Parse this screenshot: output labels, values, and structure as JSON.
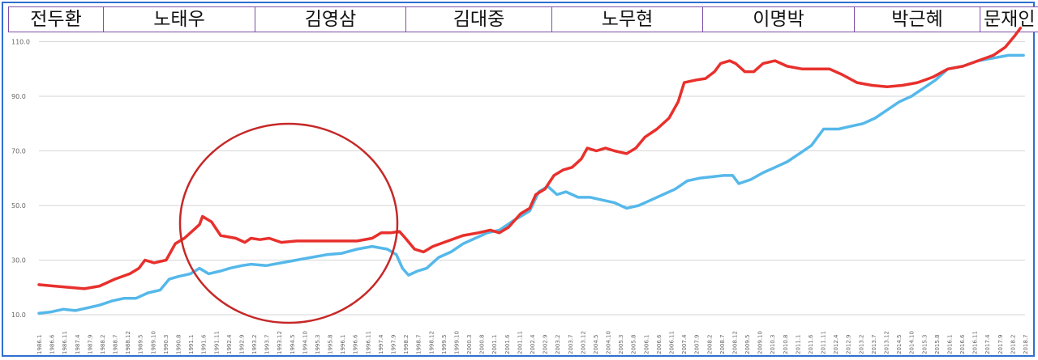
{
  "eras": [
    "전두환",
    "노태우",
    "김영삼",
    "김대중",
    "노무현",
    "이명박",
    "박근혜",
    "문재인"
  ],
  "colors": {
    "red_series": "#e8302c",
    "blue_series": "#55b8ea",
    "circle": "#c62828",
    "border": "#2e6fd0",
    "era_border": "#7c4fa8"
  },
  "chart_data": {
    "type": "line",
    "title": "",
    "xlabel": "",
    "ylabel": "",
    "ylim": [
      10,
      115
    ],
    "yticks": [
      "10.0",
      "30.0",
      "50.0",
      "70.0",
      "90.0",
      "110.0"
    ],
    "grid": true,
    "x_tick_labels": [
      "1986.1",
      "1986.6",
      "1986.11",
      "1987.4",
      "1987.9",
      "1988.2",
      "1988.7",
      "1988.12",
      "1989.5",
      "1989.10",
      "1990.3",
      "1990.8",
      "1991.1",
      "1991.6",
      "1991.11",
      "1992.4",
      "1992.9",
      "1993.2",
      "1993.7",
      "1993.12",
      "1994.5",
      "1994.10",
      "1995.3",
      "1995.8",
      "1996.1",
      "1996.6",
      "1996.11",
      "1997.4",
      "1997.9",
      "1998.2",
      "1998.7",
      "1998.12",
      "1999.5",
      "1999.10",
      "2000.3",
      "2000.8",
      "2001.1",
      "2001.6",
      "2001.11",
      "2002.4",
      "2002.9",
      "2003.2",
      "2003.7",
      "2003.12",
      "2004.5",
      "2004.10",
      "2005.3",
      "2005.8",
      "2006.1",
      "2006.6",
      "2006.11",
      "2007.4",
      "2007.9",
      "2008.2",
      "2008.7",
      "2008.12",
      "2009.5",
      "2009.10",
      "2010.3",
      "2010.8",
      "2011.1",
      "2011.6",
      "2011.11",
      "2012.4",
      "2012.9",
      "2013.2",
      "2013.7",
      "2013.12",
      "2014.5",
      "2014.10",
      "2015.3",
      "2015.8",
      "2016.1",
      "2016.6",
      "2016.11",
      "2017.4",
      "2017.9",
      "2018.2",
      "2018.7"
    ],
    "x_range": [
      1986.0,
      2018.55
    ],
    "series": [
      {
        "points": [
          [
            1986.0,
            21
          ],
          [
            1986.5,
            20.5
          ],
          [
            1987.0,
            20
          ],
          [
            1987.5,
            19.5
          ],
          [
            1988.0,
            20.5
          ],
          [
            1988.5,
            23
          ],
          [
            1989.0,
            25
          ],
          [
            1989.3,
            27
          ],
          [
            1989.5,
            30
          ],
          [
            1989.8,
            29
          ],
          [
            1990.2,
            30
          ],
          [
            1990.5,
            36
          ],
          [
            1990.8,
            38
          ],
          [
            1991.1,
            41
          ],
          [
            1991.3,
            43
          ],
          [
            1991.4,
            46
          ],
          [
            1991.7,
            44
          ],
          [
            1992.0,
            39
          ],
          [
            1992.5,
            38
          ],
          [
            1992.8,
            36.5
          ],
          [
            1993.0,
            38
          ],
          [
            1993.3,
            37.5
          ],
          [
            1993.6,
            38
          ],
          [
            1994.0,
            36.5
          ],
          [
            1994.5,
            37
          ],
          [
            1995.0,
            37
          ],
          [
            1995.5,
            37
          ],
          [
            1996.0,
            37
          ],
          [
            1996.5,
            37
          ],
          [
            1997.0,
            38
          ],
          [
            1997.3,
            40
          ],
          [
            1997.6,
            40
          ],
          [
            1997.9,
            40.5
          ],
          [
            1998.1,
            38
          ],
          [
            1998.4,
            34
          ],
          [
            1998.7,
            33
          ],
          [
            1999.0,
            35
          ],
          [
            1999.5,
            37
          ],
          [
            2000.0,
            39
          ],
          [
            2000.5,
            40
          ],
          [
            2000.9,
            41
          ],
          [
            2001.2,
            40
          ],
          [
            2001.5,
            42
          ],
          [
            2001.9,
            47
          ],
          [
            2002.2,
            49
          ],
          [
            2002.4,
            54
          ],
          [
            2002.7,
            56
          ],
          [
            2003.0,
            61
          ],
          [
            2003.3,
            63
          ],
          [
            2003.6,
            64
          ],
          [
            2003.9,
            67
          ],
          [
            2004.1,
            71
          ],
          [
            2004.4,
            70
          ],
          [
            2004.7,
            71
          ],
          [
            2005.0,
            70
          ],
          [
            2005.4,
            69
          ],
          [
            2005.7,
            71
          ],
          [
            2006.0,
            75
          ],
          [
            2006.4,
            78
          ],
          [
            2006.8,
            82
          ],
          [
            2007.1,
            88
          ],
          [
            2007.3,
            95
          ],
          [
            2007.7,
            96
          ],
          [
            2008.0,
            96.5
          ],
          [
            2008.3,
            99
          ],
          [
            2008.5,
            102
          ],
          [
            2008.8,
            103
          ],
          [
            2009.0,
            102
          ],
          [
            2009.3,
            99
          ],
          [
            2009.6,
            99
          ],
          [
            2009.9,
            102
          ],
          [
            2010.3,
            103
          ],
          [
            2010.7,
            101
          ],
          [
            2011.2,
            100
          ],
          [
            2011.7,
            100
          ],
          [
            2012.1,
            100
          ],
          [
            2012.5,
            98
          ],
          [
            2013.0,
            95
          ],
          [
            2013.5,
            94
          ],
          [
            2014.0,
            93.5
          ],
          [
            2014.5,
            94
          ],
          [
            2015.0,
            95
          ],
          [
            2015.5,
            97
          ],
          [
            2016.0,
            100
          ],
          [
            2016.5,
            101
          ],
          [
            2017.0,
            103
          ],
          [
            2017.5,
            105
          ],
          [
            2017.9,
            108
          ],
          [
            2018.2,
            112
          ],
          [
            2018.4,
            115
          ]
        ]
      },
      {
        "points": [
          [
            1986.0,
            10.5
          ],
          [
            1986.4,
            11
          ],
          [
            1986.8,
            12
          ],
          [
            1987.2,
            11.5
          ],
          [
            1987.6,
            12.5
          ],
          [
            1988.0,
            13.5
          ],
          [
            1988.4,
            15
          ],
          [
            1988.8,
            16
          ],
          [
            1989.2,
            16
          ],
          [
            1989.6,
            18
          ],
          [
            1990.0,
            19
          ],
          [
            1990.3,
            23
          ],
          [
            1990.6,
            24
          ],
          [
            1991.0,
            25
          ],
          [
            1991.3,
            27
          ],
          [
            1991.6,
            25
          ],
          [
            1992.0,
            26
          ],
          [
            1992.3,
            27
          ],
          [
            1992.7,
            28
          ],
          [
            1993.0,
            28.5
          ],
          [
            1993.5,
            28
          ],
          [
            1994.0,
            29
          ],
          [
            1994.5,
            30
          ],
          [
            1995.0,
            31
          ],
          [
            1995.5,
            32
          ],
          [
            1996.0,
            32.5
          ],
          [
            1996.5,
            34
          ],
          [
            1997.0,
            35
          ],
          [
            1997.5,
            34
          ],
          [
            1997.8,
            32
          ],
          [
            1998.0,
            27
          ],
          [
            1998.2,
            24.5
          ],
          [
            1998.5,
            26
          ],
          [
            1998.8,
            27
          ],
          [
            1999.2,
            31
          ],
          [
            1999.6,
            33
          ],
          [
            2000.0,
            36
          ],
          [
            2000.4,
            38
          ],
          [
            2000.8,
            40
          ],
          [
            2001.2,
            41
          ],
          [
            2001.6,
            44
          ],
          [
            2001.9,
            46
          ],
          [
            2002.2,
            48
          ],
          [
            2002.5,
            55
          ],
          [
            2002.8,
            57
          ],
          [
            2003.1,
            54
          ],
          [
            2003.4,
            55
          ],
          [
            2003.8,
            53
          ],
          [
            2004.2,
            53
          ],
          [
            2004.6,
            52
          ],
          [
            2005.0,
            51
          ],
          [
            2005.4,
            49
          ],
          [
            2005.8,
            50
          ],
          [
            2006.2,
            52
          ],
          [
            2006.6,
            54
          ],
          [
            2007.0,
            56
          ],
          [
            2007.4,
            59
          ],
          [
            2007.8,
            60
          ],
          [
            2008.2,
            60.5
          ],
          [
            2008.6,
            61
          ],
          [
            2008.9,
            61
          ],
          [
            2009.1,
            58
          ],
          [
            2009.5,
            59.5
          ],
          [
            2009.9,
            62
          ],
          [
            2010.3,
            64
          ],
          [
            2010.7,
            66
          ],
          [
            2011.1,
            69
          ],
          [
            2011.5,
            72
          ],
          [
            2011.9,
            78
          ],
          [
            2012.4,
            78
          ],
          [
            2012.8,
            79
          ],
          [
            2013.2,
            80
          ],
          [
            2013.6,
            82
          ],
          [
            2014.0,
            85
          ],
          [
            2014.4,
            88
          ],
          [
            2014.8,
            90
          ],
          [
            2015.2,
            93
          ],
          [
            2015.6,
            96
          ],
          [
            2016.0,
            100
          ],
          [
            2016.5,
            101
          ],
          [
            2017.0,
            103
          ],
          [
            2017.5,
            104
          ],
          [
            2018.0,
            105
          ],
          [
            2018.5,
            105
          ]
        ]
      }
    ]
  }
}
